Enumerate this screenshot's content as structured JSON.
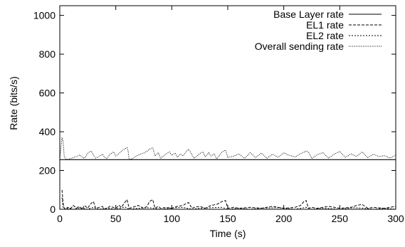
{
  "chart_data": {
    "type": "line",
    "title": "",
    "xlabel": "Time (s)",
    "ylabel": "Rate (bits/s)",
    "xlim": [
      0,
      300
    ],
    "ylim": [
      0,
      1050
    ],
    "xticks": [
      0,
      50,
      100,
      150,
      200,
      250,
      300
    ],
    "yticks": [
      0,
      200,
      400,
      600,
      800,
      1000
    ],
    "grid": false,
    "legend_position": "top-right",
    "series": [
      {
        "name": "Base Layer rate",
        "style": "solid",
        "x": [
          0,
          300
        ],
        "y": [
          256,
          256
        ]
      },
      {
        "name": "EL1 rate",
        "style": "dashed",
        "x": [
          2,
          3,
          4,
          5,
          7,
          10,
          12,
          15,
          17,
          20,
          22,
          25,
          27,
          30,
          32,
          35,
          38,
          40,
          45,
          50,
          53,
          55,
          58,
          60,
          62,
          65,
          70,
          75,
          78,
          80,
          83,
          85,
          88,
          90,
          95,
          100,
          105,
          110,
          113,
          115,
          118,
          120,
          125,
          130,
          135,
          140,
          145,
          148,
          150,
          155,
          160,
          170,
          180,
          190,
          200,
          210,
          215,
          218,
          220,
          222,
          225,
          230,
          240,
          250,
          260,
          265,
          270,
          275,
          280,
          290,
          300
        ],
        "y": [
          100,
          30,
          5,
          0,
          10,
          5,
          20,
          5,
          15,
          0,
          20,
          5,
          25,
          40,
          5,
          10,
          15,
          0,
          15,
          5,
          20,
          10,
          35,
          50,
          5,
          10,
          20,
          5,
          15,
          40,
          50,
          5,
          15,
          5,
          10,
          5,
          15,
          20,
          30,
          35,
          5,
          10,
          15,
          5,
          20,
          25,
          40,
          45,
          5,
          10,
          5,
          10,
          5,
          15,
          5,
          10,
          20,
          40,
          45,
          5,
          10,
          5,
          15,
          5,
          10,
          20,
          25,
          5,
          10,
          5,
          15
        ]
      },
      {
        "name": "EL2 rate",
        "style": "dotted",
        "x": [
          2,
          3,
          5,
          8,
          12,
          18,
          25,
          30,
          35,
          42,
          50,
          58,
          62,
          70,
          80,
          90,
          100,
          110,
          118,
          125,
          135,
          145,
          150,
          160,
          170,
          180,
          195,
          210,
          220,
          225,
          235,
          250,
          262,
          270,
          280,
          290,
          300
        ],
        "y": [
          60,
          10,
          0,
          5,
          0,
          8,
          0,
          10,
          0,
          6,
          0,
          12,
          0,
          5,
          8,
          0,
          6,
          10,
          0,
          5,
          8,
          10,
          0,
          5,
          0,
          6,
          8,
          0,
          10,
          0,
          5,
          0,
          8,
          6,
          0,
          5,
          0
        ]
      },
      {
        "name": "Overall sending rate",
        "style": "fine-dotted",
        "x": [
          0,
          2,
          3,
          4,
          6,
          10,
          15,
          18,
          20,
          22,
          25,
          28,
          30,
          32,
          35,
          38,
          40,
          42,
          45,
          48,
          50,
          53,
          55,
          58,
          60,
          61,
          62,
          65,
          70,
          75,
          78,
          80,
          83,
          85,
          88,
          90,
          95,
          98,
          100,
          103,
          105,
          108,
          110,
          113,
          115,
          118,
          120,
          125,
          128,
          130,
          133,
          135,
          138,
          140,
          145,
          148,
          150,
          155,
          160,
          165,
          170,
          175,
          180,
          185,
          190,
          195,
          200,
          205,
          210,
          215,
          220,
          222,
          225,
          230,
          235,
          240,
          245,
          250,
          255,
          260,
          265,
          270,
          275,
          280,
          285,
          290,
          295,
          300
        ],
        "y": [
          256,
          370,
          350,
          270,
          256,
          262,
          272,
          280,
          268,
          262,
          290,
          300,
          280,
          264,
          272,
          285,
          268,
          262,
          284,
          296,
          275,
          288,
          300,
          312,
          318,
          300,
          256,
          262,
          280,
          290,
          300,
          310,
          318,
          275,
          292,
          262,
          286,
          296,
          278,
          290,
          270,
          285,
          275,
          298,
          310,
          282,
          262,
          288,
          296,
          270,
          292,
          275,
          286,
          260,
          296,
          305,
          268,
          274,
          286,
          262,
          292,
          266,
          290,
          262,
          284,
          268,
          292,
          278,
          270,
          286,
          300,
          296,
          262,
          282,
          292,
          264,
          284,
          298,
          268,
          286,
          272,
          296,
          266,
          284,
          272,
          276,
          264,
          280
        ]
      }
    ]
  }
}
